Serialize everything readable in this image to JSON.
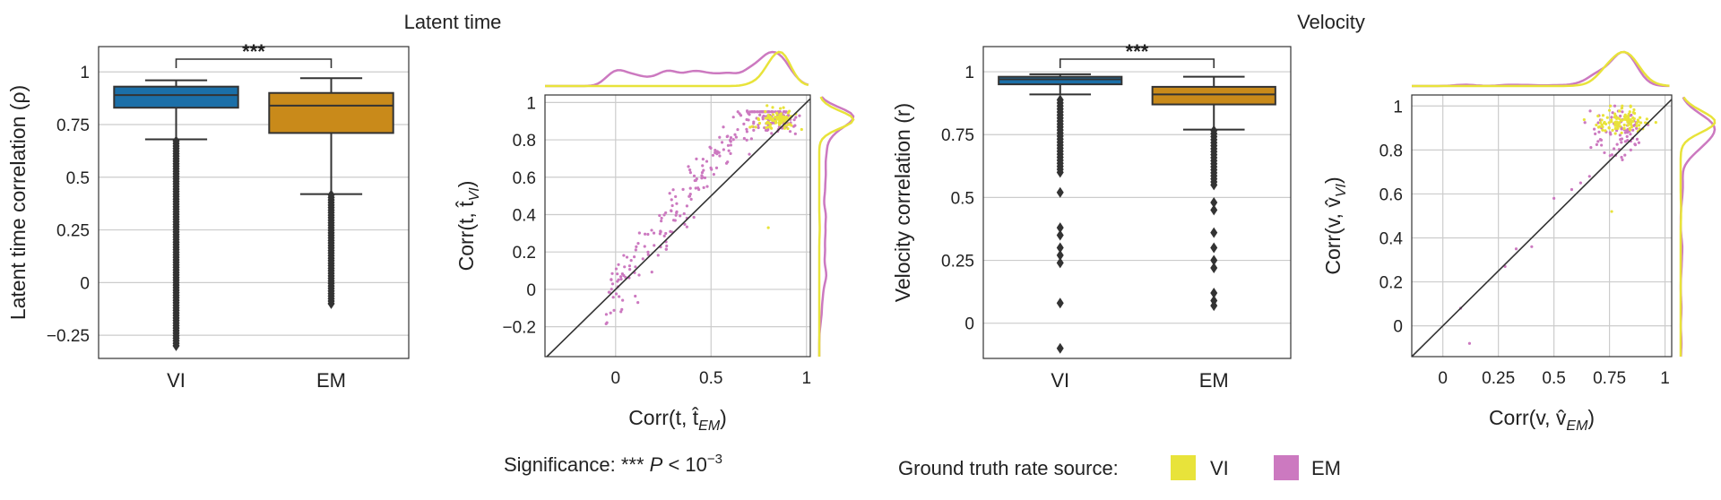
{
  "sections": {
    "latent_title": "Latent time",
    "velocity_title": "Velocity"
  },
  "footer": {
    "significance_prefix": "Significance: *** ",
    "significance_p": "P",
    "significance_rest": " < 10",
    "significance_exp": "−3",
    "ground_truth_label": "Ground truth rate source:",
    "vi_label": "VI",
    "em_label": "EM"
  },
  "colors": {
    "vi_box": "#1b6fa8",
    "em_box": "#c98a1a",
    "vi_point": "#e8e33a",
    "em_point": "#cc79c0",
    "grid": "#cccccc",
    "axis": "#333333"
  },
  "chart_data": [
    {
      "type": "box",
      "ylabel": "Latent time correlation (ρ)",
      "ylim": [
        -0.36,
        1.12
      ],
      "yticks": [
        -0.25,
        0,
        0.25,
        0.5,
        0.75,
        1
      ],
      "ytick_labels": [
        "−0.25",
        "0",
        "0.25",
        "0.5",
        "0.75",
        "1"
      ],
      "categories": [
        "VI",
        "EM"
      ],
      "boxes": [
        {
          "name": "VI",
          "whisker_low": 0.68,
          "q1": 0.83,
          "median": 0.89,
          "q3": 0.93,
          "whisker_high": 0.96,
          "outlier_min": -0.3
        },
        {
          "name": "EM",
          "whisker_low": 0.42,
          "q1": 0.71,
          "median": 0.84,
          "q3": 0.9,
          "whisker_high": 0.97,
          "outlier_min": -0.1
        }
      ],
      "significance": "***",
      "grid": true
    },
    {
      "type": "scatter",
      "xlabel_main": "Corr(t, t̂",
      "xlabel_sub": "EM",
      "ylabel_main": "Corr(t, t̂",
      "ylabel_sub": "VI",
      "xlim": [
        -0.37,
        1.02
      ],
      "ylim": [
        -0.36,
        1.04
      ],
      "xticks": [
        0,
        0.5,
        1
      ],
      "xtick_labels": [
        "0",
        "0.5",
        "1"
      ],
      "yticks": [
        -0.2,
        0,
        0.2,
        0.4,
        0.6,
        0.8,
        1
      ],
      "ytick_labels": [
        "−0.2",
        "0",
        "0.2",
        "0.4",
        "0.6",
        "0.8",
        "1"
      ],
      "series": [
        {
          "name": "VI",
          "clusters": [
            {
              "x": 0.85,
              "y": 0.91,
              "sx": 0.05,
              "sy": 0.025,
              "n": 90
            }
          ],
          "outliers": [
            [
              0.8,
              0.33
            ]
          ]
        },
        {
          "name": "EM",
          "linear": {
            "x_from": -0.05,
            "x_to": 0.9,
            "slope": 1.3,
            "intercept": 0.0,
            "y_cap": 0.95,
            "spread": 0.07,
            "n": 210
          },
          "clusters": [
            {
              "x": 0.84,
              "y": 0.9,
              "sx": 0.06,
              "sy": 0.03,
              "n": 70
            }
          ]
        }
      ],
      "identity_line": true,
      "grid": true,
      "marginals": true
    },
    {
      "type": "box",
      "ylabel": "Velocity correlation (r)",
      "ylim": [
        -0.14,
        1.1
      ],
      "yticks": [
        0,
        0.25,
        0.5,
        0.75,
        1
      ],
      "ytick_labels": [
        "0",
        "0.25",
        "0.5",
        "0.75",
        "1"
      ],
      "categories": [
        "VI",
        "EM"
      ],
      "boxes": [
        {
          "name": "VI",
          "whisker_low": 0.91,
          "q1": 0.95,
          "median": 0.97,
          "q3": 0.98,
          "whisker_high": 0.99,
          "outlier_min": -0.1
        },
        {
          "name": "EM",
          "whisker_low": 0.77,
          "q1": 0.87,
          "median": 0.91,
          "q3": 0.94,
          "whisker_high": 0.98,
          "outlier_min": 0.07
        }
      ],
      "significance": "***",
      "grid": true
    },
    {
      "type": "scatter",
      "xlabel_main": "Corr(v, v̂",
      "xlabel_sub": "EM",
      "ylabel_main": "Corr(v, v̂",
      "ylabel_sub": "VI",
      "xlim": [
        -0.14,
        1.03
      ],
      "ylim": [
        -0.14,
        1.05
      ],
      "xticks": [
        0,
        0.25,
        0.5,
        0.75,
        1
      ],
      "xtick_labels": [
        "0",
        "0.25",
        "0.5",
        "0.75",
        "1"
      ],
      "yticks": [
        0,
        0.2,
        0.4,
        0.6,
        0.8,
        1
      ],
      "ytick_labels": [
        "0",
        "0.2",
        "0.4",
        "0.6",
        "0.8",
        "1"
      ],
      "series": [
        {
          "name": "VI",
          "clusters": [
            {
              "x": 0.8,
              "y": 0.93,
              "sx": 0.06,
              "sy": 0.03,
              "n": 100
            }
          ],
          "outliers": [
            [
              0.76,
              0.52
            ]
          ]
        },
        {
          "name": "EM",
          "clusters": [
            {
              "x": 0.8,
              "y": 0.88,
              "sx": 0.07,
              "sy": 0.06,
              "n": 80
            }
          ],
          "outliers": [
            [
              0.08,
              0.08
            ],
            [
              0.12,
              -0.08
            ],
            [
              0.28,
              0.27
            ],
            [
              0.33,
              0.35
            ],
            [
              0.4,
              0.36
            ],
            [
              0.5,
              0.58
            ],
            [
              0.58,
              0.62
            ],
            [
              0.62,
              0.65
            ],
            [
              0.66,
              0.68
            ]
          ]
        }
      ],
      "identity_line": true,
      "grid": true,
      "marginals": true
    }
  ]
}
